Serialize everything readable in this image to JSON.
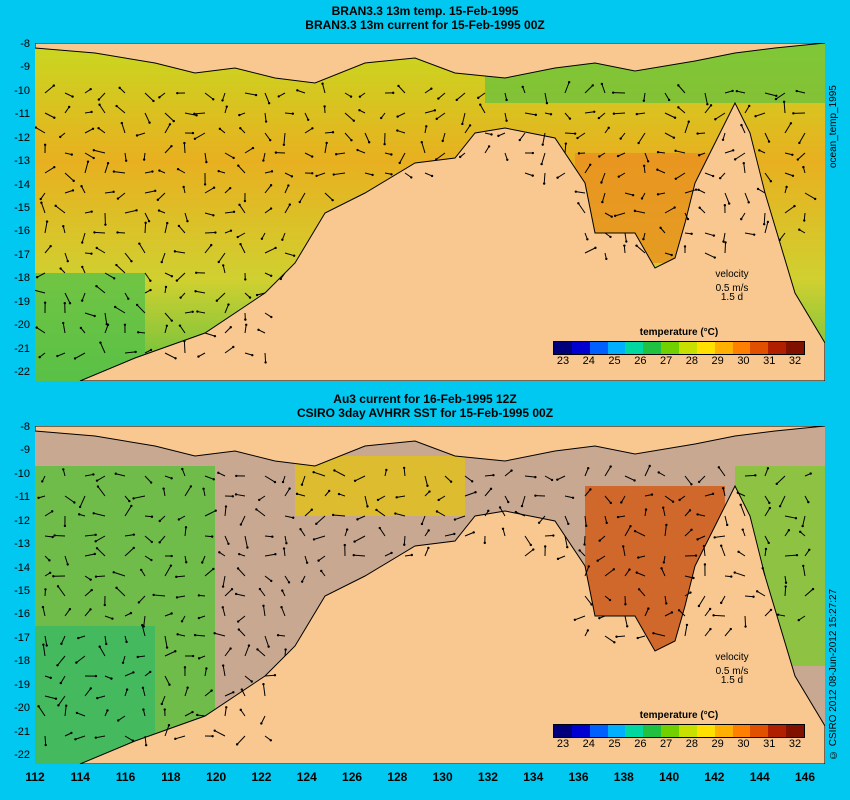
{
  "top": {
    "title1": "BRAN3.3 13m temp. 15-Feb-1995",
    "title2": "BRAN3.3 13m current for 15-Feb-1995 00Z",
    "side_label": "ocean_temp_1995"
  },
  "bottom": {
    "title1": "Au3 current for 16-Feb-1995 12Z",
    "title2": "CSIRO 3day AVHRR SST for 15-Feb-1995 00Z",
    "side_label": "© CSIRO 2012  08-Jun-2012 15:27:27"
  },
  "y_ticks": [
    "-8",
    "-9",
    "-10",
    "-11",
    "-12",
    "-13",
    "-14",
    "-15",
    "-16",
    "-17",
    "-18",
    "-19",
    "-20",
    "-21",
    "-22"
  ],
  "x_ticks": [
    "112",
    "114",
    "116",
    "118",
    "120",
    "122",
    "124",
    "126",
    "128",
    "130",
    "132",
    "134",
    "136",
    "138",
    "140",
    "142",
    "144",
    "146"
  ],
  "velocity": {
    "label": "velocity",
    "speed": "0.5 m/s",
    "duration": "1.5 d"
  },
  "legend": {
    "title": "temperature (°C)",
    "ticks": [
      "23",
      "24",
      "25",
      "26",
      "27",
      "28",
      "29",
      "30",
      "31",
      "32"
    ],
    "colors": [
      "#00007a",
      "#0000d0",
      "#0060ff",
      "#00b0ff",
      "#00d8a0",
      "#20c040",
      "#70d000",
      "#c8e000",
      "#ffe000",
      "#ffb000",
      "#ff8000",
      "#e05000",
      "#b02000",
      "#801000"
    ]
  },
  "colors": {
    "background": "#00c8f0",
    "land": "#f8c890",
    "no_data": "#c8a890",
    "ocean_warm": "#f0a020",
    "ocean_mid": "#e0d020",
    "ocean_cool": "#50c040"
  }
}
